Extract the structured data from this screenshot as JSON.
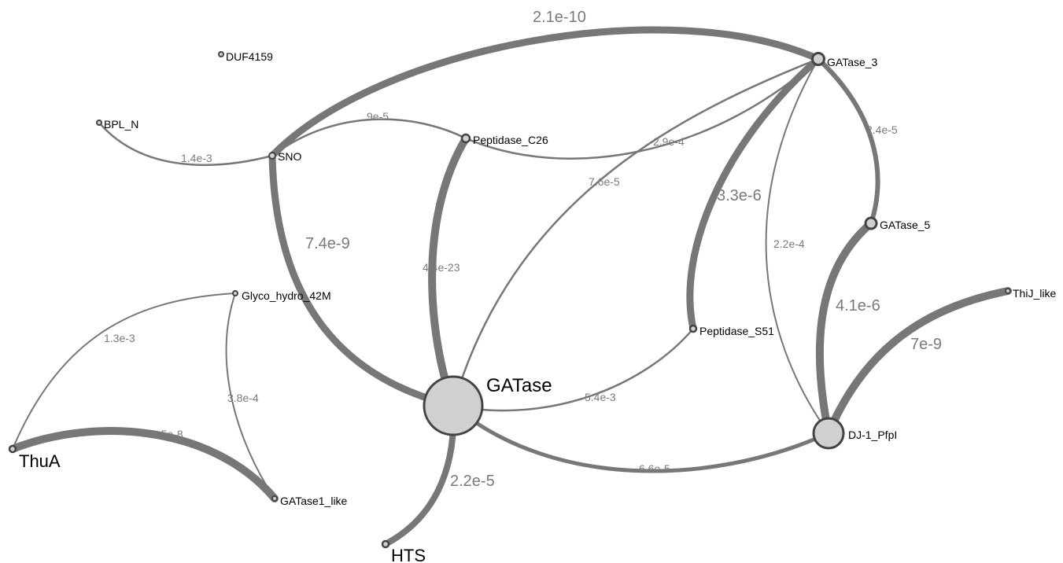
{
  "nodes": [
    {
      "id": "gatase",
      "label": "GATase"
    },
    {
      "id": "gatase3",
      "label": "GATase_3"
    },
    {
      "id": "gatase5",
      "label": "GATase_5"
    },
    {
      "id": "dj1",
      "label": "DJ-1_PfpI"
    },
    {
      "id": "thij",
      "label": "ThiJ_like"
    },
    {
      "id": "sno",
      "label": "SNO"
    },
    {
      "id": "bpln",
      "label": "BPL_N"
    },
    {
      "id": "duf",
      "label": "DUF4159"
    },
    {
      "id": "pepc26",
      "label": "Peptidase_C26"
    },
    {
      "id": "peps51",
      "label": "Peptidase_S51"
    },
    {
      "id": "glyco",
      "label": "Glyco_hydro_42M"
    },
    {
      "id": "thua",
      "label": "ThuA"
    },
    {
      "id": "gatase1",
      "label": "GATase1_like"
    },
    {
      "id": "hts",
      "label": "HTS"
    }
  ],
  "edges": [
    {
      "id": "sno-gatase3",
      "label": "2.1e-10"
    },
    {
      "id": "sno-gatase",
      "label": "7.4e-9"
    },
    {
      "id": "sno-pepc26",
      "label": "9e-5"
    },
    {
      "id": "bpln-sno",
      "label": "1.4e-3"
    },
    {
      "id": "pepc26-gatase",
      "label": "4.4e-23"
    },
    {
      "id": "pepc26-gatase3",
      "label": "2.9e-4"
    },
    {
      "id": "gatase-gatase3",
      "label": "7.6e-5"
    },
    {
      "id": "gatase3-peps51",
      "label": "3.3e-6"
    },
    {
      "id": "gatase3-gatase5",
      "label": "2.4e-5"
    },
    {
      "id": "gatase3-dj1",
      "label": "2.2e-4"
    },
    {
      "id": "gatase5-dj1",
      "label": "4.1e-6"
    },
    {
      "id": "dj1-thij",
      "label": "7e-9"
    },
    {
      "id": "gatase-peps51",
      "label": "5.4e-3"
    },
    {
      "id": "gatase-dj1",
      "label": "6.6e-5"
    },
    {
      "id": "gatase-hts",
      "label": "2.2e-5"
    },
    {
      "id": "thua-glyco",
      "label": "1.3e-3"
    },
    {
      "id": "thua-gatase1",
      "label": "4.5e-8"
    },
    {
      "id": "glyco-gatase1",
      "label": "3.8e-4"
    }
  ]
}
